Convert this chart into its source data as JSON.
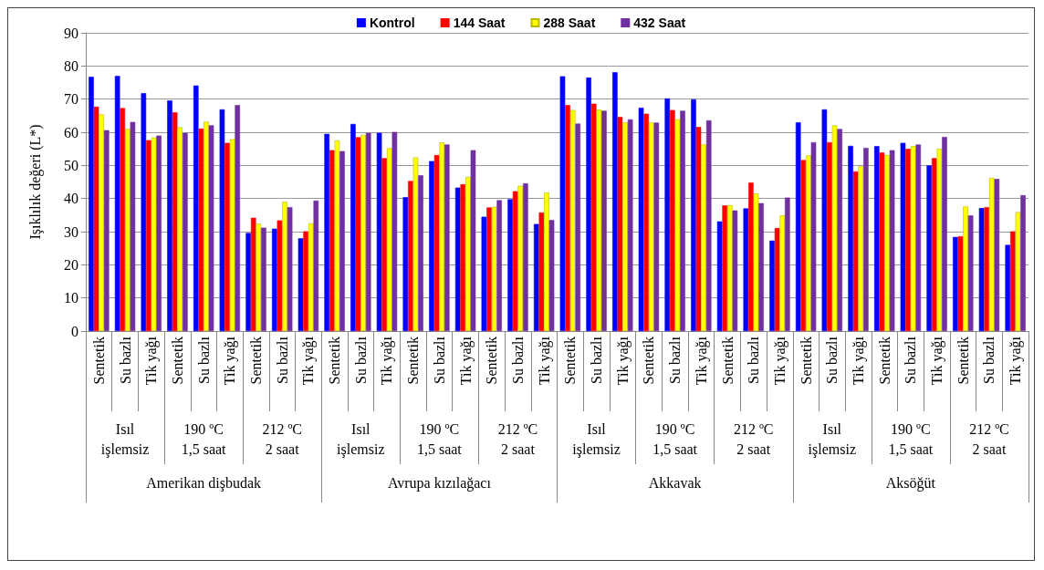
{
  "chart_data": {
    "type": "bar",
    "ylabel": "Işıklılık değeri (L*)",
    "categories": [
      "Sentetik",
      "Su bazlı",
      "Tik yağı",
      "Sentetik",
      "Su bazlı",
      "Tik yağı",
      "Sentetik",
      "Su bazlı",
      "Tik yağı",
      "Sentetik",
      "Su bazlı",
      "Tik yağı",
      "Sentetik",
      "Su bazlı",
      "Tik yağı",
      "Sentetik",
      "Su bazlı",
      "Tik yağı",
      "Sentetik",
      "Su bazlı",
      "Tik yağı",
      "Sentetik",
      "Su bazlı",
      "Tik yağı",
      "Sentetik",
      "Su bazlı",
      "Tik yağı",
      "Sentetik",
      "Su bazlı",
      "Tik yağı",
      "Sentetik",
      "Su bazlı",
      "Tik yağı",
      "Sentetik",
      "Su bazlı",
      "Tik yağı"
    ],
    "annotations": [
      "Isıl\nişlemsiz",
      "190 ºC\n1,5 saat",
      "212 ºC\n2 saat",
      "Isıl\nişlemsiz",
      "190 ºC\n1,5 saat",
      "212 ºC\n2 saat",
      "Isıl\nişlemsiz",
      "190 ºC\n1,5 saat",
      "212 ºC\n2 saat",
      "Isıl\nişlemsiz",
      "190 ºC\n1,5 saat",
      "212 ºC\n2 saat",
      "Amerikan dişbudak",
      "Avrupa kızılağacı",
      "Akkavak",
      "Aksöğüt"
    ],
    "series": [
      {
        "name": "Kontrol",
        "color": "#0000ff",
        "values": [
          76.7,
          77.0,
          71.8,
          69.6,
          74.1,
          66.9,
          29.6,
          30.9,
          28.0,
          59.5,
          62.5,
          59.8,
          40.4,
          51.3,
          43.3,
          34.5,
          39.8,
          32.3,
          76.9,
          76.5,
          78.1,
          67.4,
          70.2,
          69.9,
          33.1,
          37.0,
          27.3,
          63.0,
          66.9,
          55.9,
          55.8,
          56.8,
          50.0,
          28.4,
          37.1,
          26.0
        ]
      },
      {
        "name": "144 Saat",
        "color": "#ff0000",
        "values": [
          67.7,
          67.3,
          57.6,
          66.0,
          61.1,
          56.8,
          34.2,
          33.4,
          30.1,
          54.6,
          58.5,
          52.2,
          45.3,
          53.1,
          44.3,
          37.3,
          42.2,
          35.8,
          68.2,
          68.6,
          64.6,
          65.6,
          66.7,
          61.6,
          37.9,
          44.8,
          31.1,
          51.6,
          57.0,
          48.2,
          53.9,
          55.0,
          52.2,
          28.6,
          37.4,
          30.1
        ]
      },
      {
        "name": "288 Saat",
        "color": "#ffff00",
        "values": [
          65.4,
          61.0,
          58.4,
          61.5,
          63.2,
          57.9,
          32.4,
          39.0,
          32.5,
          57.5,
          59.2,
          55.2,
          52.4,
          56.9,
          46.5,
          37.5,
          43.8,
          41.8,
          66.7,
          66.8,
          63.0,
          62.9,
          63.9,
          56.3,
          38.0,
          41.5,
          34.9,
          53.0,
          62.1,
          49.7,
          53.1,
          55.8,
          55.0,
          37.6,
          46.2,
          35.9
        ]
      },
      {
        "name": "432 Saat",
        "color": "#7030a0",
        "values": [
          60.6,
          63.1,
          59.0,
          59.8,
          62.1,
          68.2,
          31.2,
          37.4,
          39.4,
          54.3,
          59.8,
          60.1,
          47.0,
          56.3,
          54.6,
          39.5,
          44.6,
          33.5,
          62.6,
          66.5,
          63.9,
          62.9,
          66.5,
          63.6,
          36.4,
          38.6,
          40.3,
          57.0,
          61.0,
          55.3,
          54.6,
          56.3,
          58.6,
          34.9,
          45.9,
          41.0
        ]
      }
    ],
    "ylim": [
      0,
      90
    ],
    "yticks": [
      0,
      10,
      20,
      30,
      40,
      50,
      60,
      70,
      80,
      90
    ],
    "grid": "y",
    "legend": "top"
  }
}
